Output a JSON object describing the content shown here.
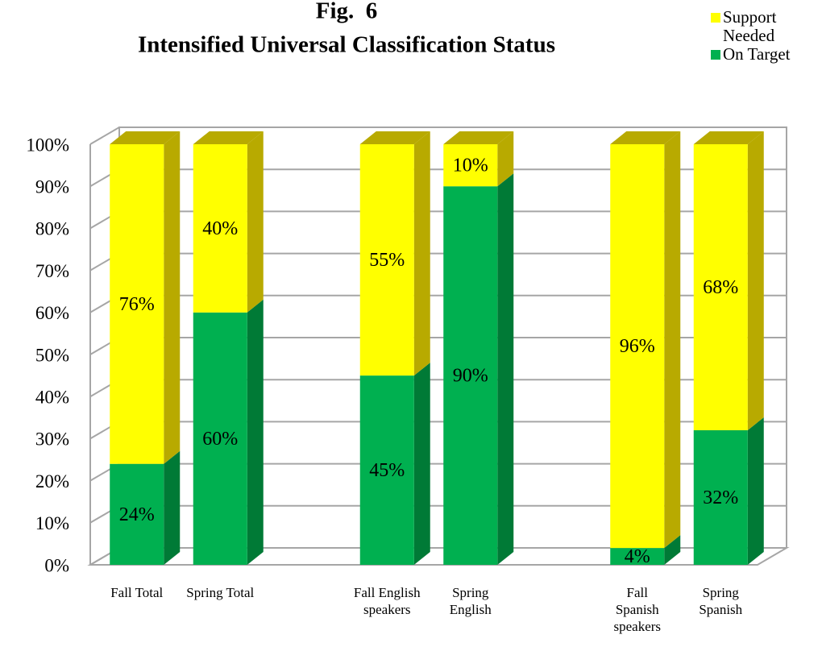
{
  "chart_data": {
    "type": "bar",
    "stacked": true,
    "three_d": true,
    "title": "Fig.  6",
    "subtitle": "Intensified Universal Classification Status",
    "categories": [
      "Fall Total",
      "Spring Total",
      null,
      "Fall English speakers",
      "Spring English",
      null,
      "Fall Spanish speakers",
      "Spring Spanish"
    ],
    "series": [
      {
        "name": "On Target",
        "color": "#00b050",
        "side_color": "#007a36",
        "values": [
          24,
          60,
          null,
          45,
          90,
          null,
          4,
          32
        ],
        "value_labels": [
          "24%",
          "60%",
          null,
          "45%",
          "90%",
          null,
          "4%",
          "32%"
        ]
      },
      {
        "name": "Support Needed",
        "color": "#ffff00",
        "side_color": "#b8aa00",
        "values": [
          76,
          40,
          null,
          55,
          10,
          null,
          96,
          68
        ],
        "value_labels": [
          "76%",
          "40%",
          null,
          "55%",
          "10%",
          null,
          "96%",
          "68%"
        ]
      }
    ],
    "ylim": [
      0,
      100
    ],
    "yticks": [
      {
        "value": 0,
        "label": "0%"
      },
      {
        "value": 10,
        "label": "10%"
      },
      {
        "value": 20,
        "label": "20%"
      },
      {
        "value": 30,
        "label": "30%"
      },
      {
        "value": 40,
        "label": "40%"
      },
      {
        "value": 50,
        "label": "50%"
      },
      {
        "value": 60,
        "label": "60%"
      },
      {
        "value": 70,
        "label": "70%"
      },
      {
        "value": 80,
        "label": "80%"
      },
      {
        "value": 90,
        "label": "90%"
      },
      {
        "value": 100,
        "label": "100%"
      }
    ],
    "grid": true,
    "legend": "top-right"
  }
}
